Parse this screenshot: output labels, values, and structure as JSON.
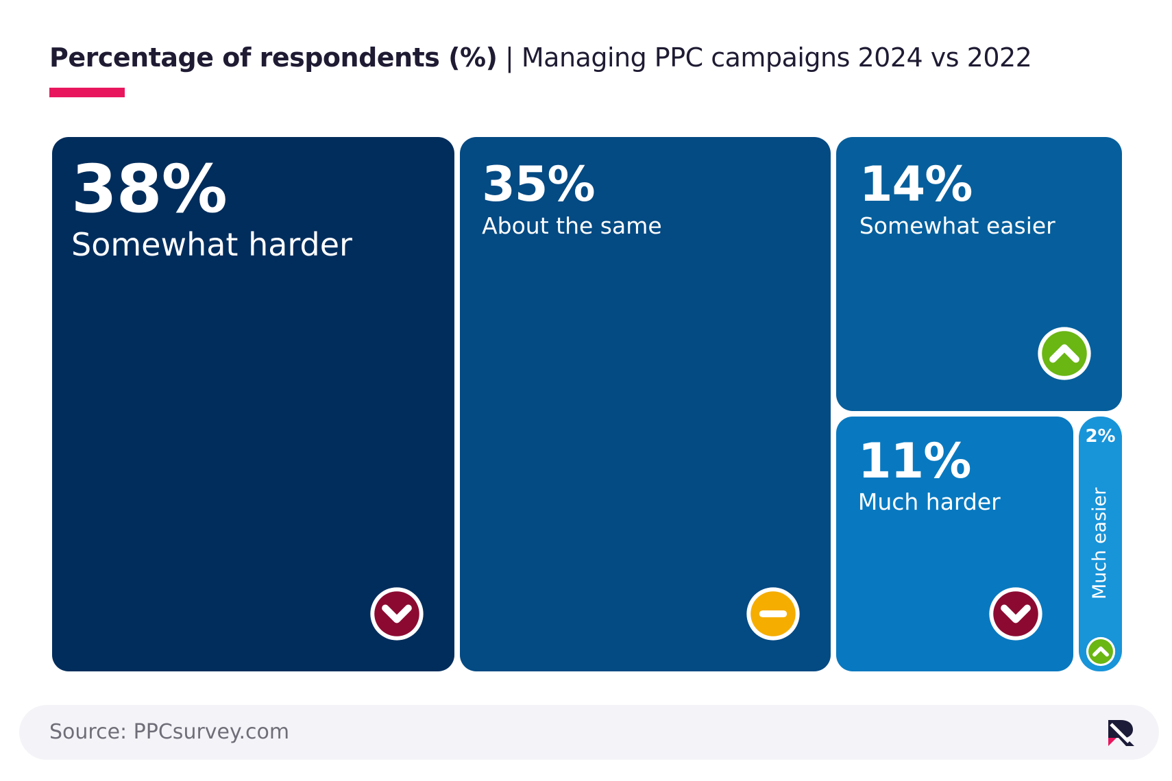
{
  "title": {
    "bold": "Percentage of respondents (%)",
    "light": " | Managing PPC campaigns 2024 vs 2022"
  },
  "chart_data": {
    "type": "treemap",
    "unit": "%",
    "items": [
      {
        "label": "Somewhat harder",
        "value": 38,
        "value_text": "38%",
        "color": "#012d5c",
        "icon": "chevron-down-icon",
        "icon_color": "#8c0a32"
      },
      {
        "label": "About the same",
        "value": 35,
        "value_text": "35%",
        "color": "#044a83",
        "icon": "minus-icon",
        "icon_color": "#f5ad00"
      },
      {
        "label": "Somewhat easier",
        "value": 14,
        "value_text": "14%",
        "color": "#065f9c",
        "icon": "chevron-up-icon",
        "icon_color": "#6ab613"
      },
      {
        "label": "Much harder",
        "value": 11,
        "value_text": "11%",
        "color": "#0879c0",
        "icon": "chevron-down-icon",
        "icon_color": "#8c0a32"
      },
      {
        "label": "Much easier",
        "value": 2,
        "value_text": "2%",
        "color": "#1894d9",
        "icon": "chevron-up-icon",
        "icon_color": "#6ab613"
      }
    ]
  },
  "footer": {
    "source": "Source: PPCsurvey.com",
    "logo_icon": "brand-logo-icon"
  }
}
